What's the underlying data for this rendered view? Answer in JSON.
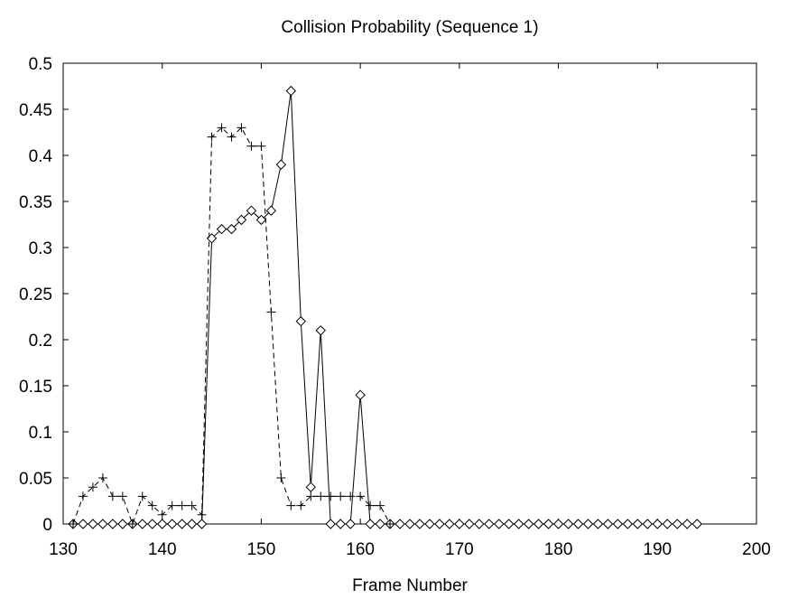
{
  "chart_data": {
    "type": "line",
    "title": "Collision Probability (Sequence 1)",
    "xlabel": "Frame Number",
    "ylabel": "",
    "xlim": [
      130,
      200
    ],
    "ylim": [
      0,
      0.5
    ],
    "xticks": [
      130,
      140,
      150,
      160,
      170,
      180,
      190,
      200
    ],
    "xtick_labels": [
      "130",
      "140",
      "150",
      "160",
      "170",
      "180",
      "190",
      "200"
    ],
    "yticks": [
      0,
      0.05,
      0.1,
      0.15,
      0.2,
      0.25,
      0.3,
      0.35,
      0.4,
      0.45,
      0.5
    ],
    "ytick_labels": [
      "0",
      "0.05",
      "0.1",
      "0.15",
      "0.2",
      "0.25",
      "0.3",
      "0.35",
      "0.4",
      "0.45",
      "0.5"
    ],
    "grid": false,
    "legend": "none",
    "series": [
      {
        "line_style": "solid",
        "marker": "diamond",
        "color": "#000000",
        "x": [
          131,
          132,
          133,
          134,
          135,
          136,
          137,
          138,
          139,
          140,
          141,
          142,
          143,
          144,
          145,
          146,
          147,
          148,
          149,
          150,
          151,
          152,
          153,
          154,
          155,
          156,
          157,
          158,
          159,
          160,
          161,
          162,
          163,
          164,
          165,
          166,
          167,
          168,
          169,
          170,
          171,
          172,
          173,
          174,
          175,
          176,
          177,
          178,
          179,
          180,
          181,
          182,
          183,
          184,
          185,
          186,
          187,
          188,
          189,
          190,
          191,
          192,
          193,
          194
        ],
        "values": [
          0,
          0,
          0,
          0,
          0,
          0,
          0,
          0,
          0,
          0,
          0,
          0,
          0,
          0,
          0.31,
          0.32,
          0.32,
          0.33,
          0.34,
          0.33,
          0.34,
          0.39,
          0.47,
          0.22,
          0.04,
          0.21,
          0,
          0,
          0,
          0.14,
          0,
          0,
          0,
          0,
          0,
          0,
          0,
          0,
          0,
          0,
          0,
          0,
          0,
          0,
          0,
          0,
          0,
          0,
          0,
          0,
          0,
          0,
          0,
          0,
          0,
          0,
          0,
          0,
          0,
          0,
          0,
          0,
          0,
          0
        ]
      },
      {
        "line_style": "dashed",
        "marker": "plus",
        "color": "#000000",
        "x": [
          131,
          132,
          133,
          134,
          135,
          136,
          137,
          138,
          139,
          140,
          141,
          142,
          143,
          144,
          145,
          146,
          147,
          148,
          149,
          150,
          151,
          152,
          153,
          154,
          155,
          156,
          157,
          158,
          159,
          160,
          161,
          162,
          163
        ],
        "values": [
          0,
          0.03,
          0.04,
          0.05,
          0.03,
          0.03,
          0,
          0.03,
          0.02,
          0.01,
          0.02,
          0.02,
          0.02,
          0.01,
          0.42,
          0.43,
          0.42,
          0.43,
          0.41,
          0.41,
          0.23,
          0.05,
          0.02,
          0.02,
          0.03,
          0.03,
          0.03,
          0.03,
          0.03,
          0.03,
          0.02,
          0.02,
          0
        ]
      }
    ]
  }
}
